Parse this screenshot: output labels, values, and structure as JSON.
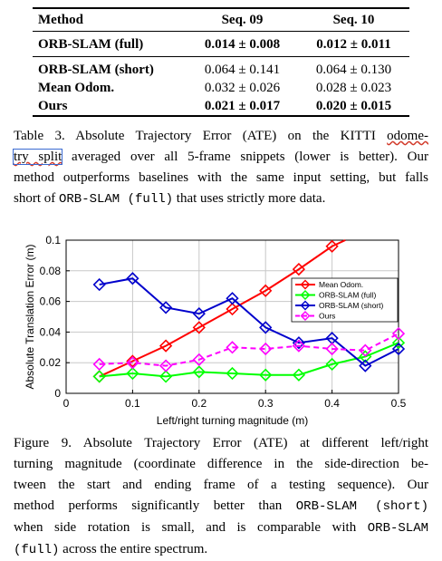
{
  "table": {
    "headers": [
      "Method",
      "Seq. 09",
      "Seq. 10"
    ],
    "full_row": {
      "method": "ORB-SLAM (full)",
      "seq09": "0.014 ± 0.008",
      "seq10": "0.012 ± 0.011"
    },
    "rows": [
      {
        "method": "ORB-SLAM (short)",
        "seq09": "0.064 ± 0.141",
        "seq10": "0.064 ± 0.130"
      },
      {
        "method": "Mean Odom.",
        "seq09": "0.032 ± 0.026",
        "seq10": "0.028 ± 0.023"
      },
      {
        "method": "Ours",
        "seq09": "0.021 ± 0.017",
        "seq10": "0.020 ± 0.015"
      }
    ]
  },
  "table_caption": {
    "l1a": "Table 3. Absolute Trajectory Error (ATE) on the KITTI ",
    "l1b": "odome-",
    "l2a": "try split",
    "l2b": " averaged over all 5-frame snippets (lower is better).  Our",
    "l3": "method outperforms baselines with the same input setting, but falls",
    "l4a": "short of ",
    "l4b": "ORB-SLAM (full)",
    "l4c": " that uses strictly more data."
  },
  "figure_caption": {
    "l1": "Figure 9. Absolute Trajectory Error (ATE) at different left/right",
    "l2": "turning magnitude (coordinate difference in the side-direction be-",
    "l3": "tween the start and ending frame of a testing sequence).  Our",
    "l4a": "method performs significantly better than ",
    "l4b": "ORB-SLAM (short)",
    "l5a": "when side rotation is small, and is comparable with ",
    "l5b": "ORB-SLAM",
    "l6a": "(full)",
    "l6b": " across the entire spectrum."
  },
  "chart_data": {
    "type": "line",
    "xlabel": "Left/right turning magnitude (m)",
    "ylabel": "Absolute Translation Error (m)",
    "xlim": [
      0,
      0.5
    ],
    "ylim": [
      0,
      0.1
    ],
    "xticks": [
      "0",
      "0.1",
      "0.2",
      "0.3",
      "0.4",
      "0.5"
    ],
    "yticks": [
      "0",
      "0.02",
      "0.04",
      "0.06",
      "0.08",
      "0.1"
    ],
    "grid": true,
    "legend_position": "right",
    "marker": "diamond",
    "x": [
      0.05,
      0.1,
      0.15,
      0.2,
      0.25,
      0.3,
      0.35,
      0.4,
      0.45,
      0.5
    ],
    "series": [
      {
        "name": "Mean Odom.",
        "color": "#ff0000",
        "dash": "solid",
        "values": [
          0.011,
          0.021,
          0.031,
          0.043,
          0.055,
          0.067,
          0.081,
          0.096,
          null,
          null
        ],
        "line_end": [
          0.42,
          0.1
        ]
      },
      {
        "name": "ORB-SLAM (full)",
        "color": "#00ff00",
        "dash": "solid",
        "values": [
          0.011,
          0.013,
          0.011,
          0.014,
          0.013,
          0.012,
          0.012,
          0.019,
          0.024,
          0.033
        ]
      },
      {
        "name": "ORB-SLAM (short)",
        "color": "#0000cc",
        "dash": "solid",
        "values": [
          0.071,
          0.075,
          0.056,
          0.052,
          0.062,
          0.043,
          0.033,
          0.036,
          0.018,
          0.029
        ]
      },
      {
        "name": "Ours",
        "color": "#ff00ff",
        "dash": "dashed",
        "values": [
          0.019,
          0.02,
          0.018,
          0.022,
          0.03,
          0.029,
          0.031,
          0.029,
          0.028,
          0.039
        ]
      }
    ]
  }
}
